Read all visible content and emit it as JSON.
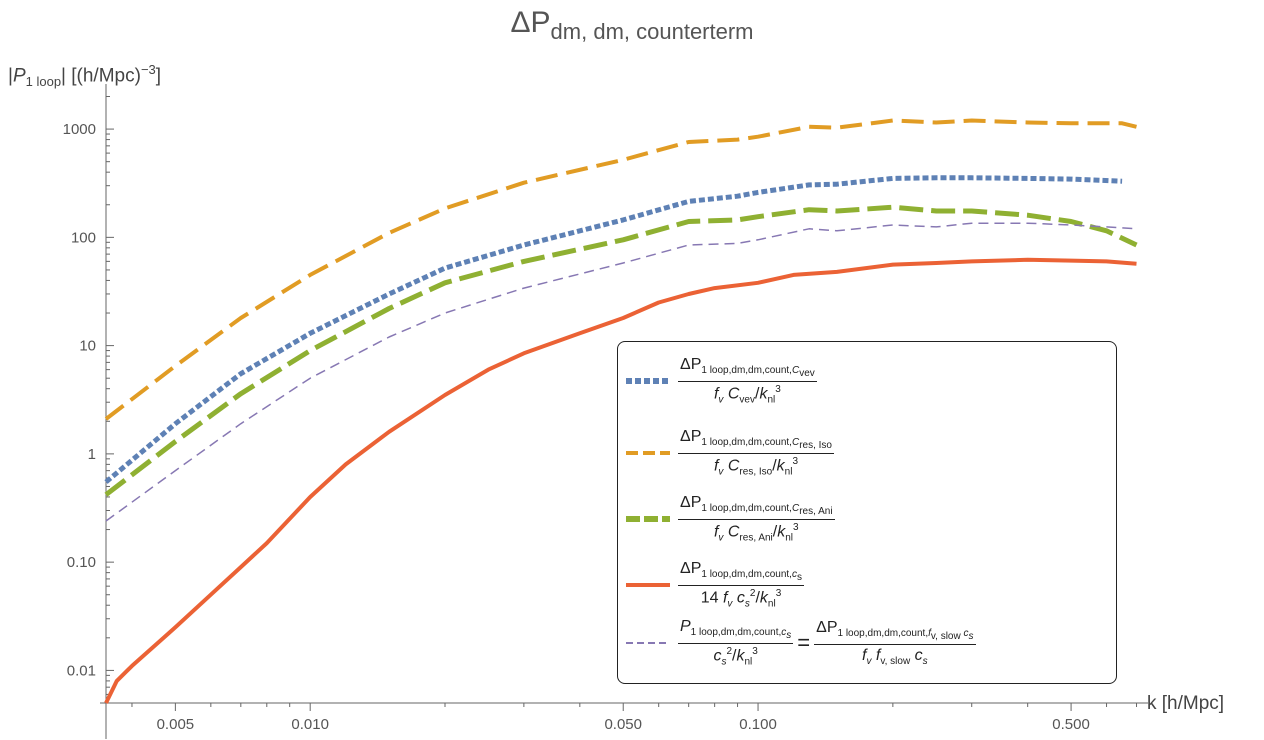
{
  "chart_data": {
    "type": "line",
    "title": "ΔP",
    "title_sub": "dm, dm, counterterm",
    "ylabel": "|P₁ loop| [(h/Mpc)⁻³]",
    "xlabel": "k [h/Mpc]",
    "x_scale": "log",
    "y_scale": "log",
    "xlim": [
      0.0035,
      0.72
    ],
    "ylim": [
      0.005,
      2500
    ],
    "x_ticks": [
      {
        "v": 0.005,
        "label": "0.005"
      },
      {
        "v": 0.01,
        "label": "0.010"
      },
      {
        "v": 0.05,
        "label": "0.050"
      },
      {
        "v": 0.1,
        "label": "0.100"
      },
      {
        "v": 0.5,
        "label": "0.500"
      }
    ],
    "y_ticks": [
      {
        "v": 0.01,
        "label": "0.01"
      },
      {
        "v": 0.1,
        "label": "0.10"
      },
      {
        "v": 1,
        "label": "1"
      },
      {
        "v": 10,
        "label": "10"
      },
      {
        "v": 100,
        "label": "100"
      },
      {
        "v": 1000,
        "label": "1000"
      }
    ],
    "legend_position": "bottom-right",
    "series": [
      {
        "color": "#5e81b5",
        "dash": "6,3",
        "width": 5,
        "x": [
          0.0035,
          0.005,
          0.007,
          0.01,
          0.015,
          0.02,
          0.03,
          0.05,
          0.07,
          0.09,
          0.1,
          0.13,
          0.15,
          0.2,
          0.25,
          0.3,
          0.4,
          0.5,
          0.65
        ],
        "y": [
          0.55,
          1.9,
          5.5,
          13,
          30,
          52,
          85,
          145,
          215,
          240,
          260,
          305,
          310,
          350,
          355,
          355,
          350,
          345,
          330
        ]
      },
      {
        "color": "#e19c24",
        "dash": "22,9",
        "width": 4,
        "x": [
          0.0035,
          0.005,
          0.007,
          0.01,
          0.015,
          0.02,
          0.03,
          0.05,
          0.07,
          0.09,
          0.1,
          0.13,
          0.15,
          0.2,
          0.25,
          0.3,
          0.4,
          0.5,
          0.65,
          0.7
        ],
        "y": [
          2.1,
          6.5,
          18,
          45,
          110,
          185,
          320,
          520,
          760,
          800,
          850,
          1050,
          1030,
          1200,
          1150,
          1200,
          1150,
          1130,
          1130,
          1050
        ]
      },
      {
        "color": "#8fb032",
        "dash": "24,8",
        "width": 5,
        "x": [
          0.0035,
          0.005,
          0.007,
          0.01,
          0.015,
          0.02,
          0.03,
          0.05,
          0.07,
          0.09,
          0.1,
          0.13,
          0.15,
          0.2,
          0.25,
          0.3,
          0.4,
          0.5,
          0.6,
          0.7
        ],
        "y": [
          0.42,
          1.3,
          3.6,
          9,
          22,
          38,
          60,
          95,
          140,
          145,
          155,
          180,
          175,
          190,
          175,
          175,
          160,
          140,
          115,
          85
        ]
      },
      {
        "color": "#eb6235",
        "dash": "",
        "width": 4,
        "x": [
          0.0035,
          0.0037,
          0.004,
          0.005,
          0.006,
          0.007,
          0.008,
          0.01,
          0.012,
          0.015,
          0.02,
          0.025,
          0.03,
          0.04,
          0.05,
          0.06,
          0.07,
          0.08,
          0.1,
          0.12,
          0.15,
          0.2,
          0.25,
          0.3,
          0.4,
          0.5,
          0.6,
          0.7
        ],
        "y": [
          0.005,
          0.008,
          0.011,
          0.025,
          0.05,
          0.09,
          0.15,
          0.4,
          0.8,
          1.6,
          3.5,
          6,
          8.5,
          13,
          18,
          25,
          30,
          34,
          38,
          45,
          48,
          56,
          58,
          60,
          62,
          61,
          60,
          57
        ]
      },
      {
        "color": "#8778b3",
        "dash": "10,6",
        "width": 1.5,
        "x": [
          0.0035,
          0.005,
          0.007,
          0.01,
          0.015,
          0.02,
          0.03,
          0.05,
          0.07,
          0.09,
          0.1,
          0.13,
          0.15,
          0.2,
          0.25,
          0.3,
          0.4,
          0.5,
          0.6,
          0.7
        ],
        "y": [
          0.24,
          0.7,
          1.9,
          5,
          12,
          20,
          34,
          58,
          85,
          88,
          95,
          120,
          115,
          130,
          125,
          135,
          135,
          130,
          125,
          120
        ]
      }
    ],
    "legend": [
      {
        "num": "ΔP",
        "num_sub": "1 loop,dm,dm,count,",
        "num_sub2": "C",
        "num_sub3": "vev",
        "den_pre": "",
        "den_f": "f",
        "den_fsub": "v",
        "den_c": "C",
        "den_csub": "vev",
        "den_k": "k",
        "den_ksub": "nl",
        "den_exp": "3"
      },
      {
        "num": "ΔP",
        "num_sub": "1 loop,dm,dm,count,",
        "num_sub2": "C",
        "num_sub3": "res, Iso",
        "den_pre": "",
        "den_f": "f",
        "den_fsub": "v",
        "den_c": "C",
        "den_csub": "res, Iso",
        "den_k": "k",
        "den_ksub": "nl",
        "den_exp": "3"
      },
      {
        "num": "ΔP",
        "num_sub": "1 loop,dm,dm,count,",
        "num_sub2": "C",
        "num_sub3": "res, Ani",
        "den_pre": "",
        "den_f": "f",
        "den_fsub": "v",
        "den_c": "C",
        "den_csub": "res, Ani",
        "den_k": "k",
        "den_ksub": "nl",
        "den_exp": "3"
      },
      {
        "num": "ΔP",
        "num_sub": "1 loop,dm,dm,count,",
        "num_sub2": "c",
        "num_sub3": "s",
        "den_pre": "14",
        "den_f": "f",
        "den_fsub": "v",
        "den_c": "c",
        "den_csub": "s",
        "den_k": "k",
        "den_ksub": "nl",
        "den_exp": "3"
      },
      {
        "lhs_num": "P",
        "lhs_sub": "1 loop,dm,dm,count,",
        "lhs_sub2": "c",
        "lhs_sub3": "s",
        "lhs_den_c": "c",
        "lhs_den_csub": "s",
        "lhs_den_k": "k",
        "lhs_den_ksub": "nl",
        "lhs_den_exp": "3",
        "eq": "=",
        "rhs_num": "ΔP",
        "rhs_sub": "1 loop,dm,dm,count,",
        "rhs_sub2": "f",
        "rhs_sub3": "v, slow",
        "rhs_sub4": "c",
        "rhs_sub5": "s",
        "rhs_den_f": "f",
        "rhs_den_fsub": "v",
        "rhs_den_f2": "f",
        "rhs_den_f2sub": "v, slow",
        "rhs_den_c": "c",
        "rhs_den_csub": "s"
      }
    ]
  }
}
